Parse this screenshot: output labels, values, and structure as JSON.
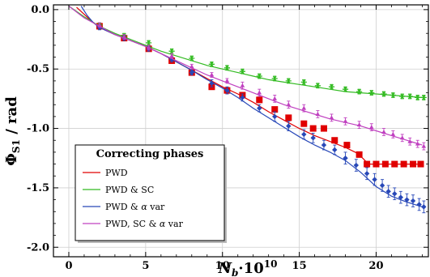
{
  "chart_data": {
    "type": "line",
    "xlabel_base": "N",
    "xlabel_sub": "b",
    "xlabel_rest": "·10",
    "xlabel_sup": "10",
    "ylabel_base": "Φ",
    "ylabel_sub": "S1",
    "ylabel_rest": " / rad",
    "xlim": [
      -1.0,
      23.4
    ],
    "ylim": [
      -2.08,
      0.04
    ],
    "x_ticks": [
      "0",
      "5",
      "10",
      "15",
      "20"
    ],
    "x_tick_values": [
      0,
      5,
      10,
      15,
      20
    ],
    "y_ticks": [
      "0.0",
      "-0.5",
      "-1.0",
      "-1.5",
      "-2.0"
    ],
    "y_tick_values": [
      0.0,
      -0.5,
      -1.0,
      -1.5,
      -2.0
    ],
    "legend": {
      "title": "Correcting phases",
      "placement": "lower-left",
      "entries": [
        {
          "label": "PWD",
          "color": "#e00000"
        },
        {
          "label": "PWD & SC",
          "color": "#33bb22"
        },
        {
          "label_prefix": "PWD & ",
          "label_symbol": "α",
          "label_suffix": " var",
          "color": "#2848b8"
        },
        {
          "label_prefix": "PWD, SC & ",
          "label_symbol": "α",
          "label_suffix": " var",
          "color": "#c040c0"
        }
      ]
    },
    "series": [
      {
        "name": "PWD",
        "color": "#e00000",
        "marker": "square",
        "curve_x": [
          0.5,
          1.0,
          1.5,
          2.0,
          3.0,
          4.0,
          5.0,
          6.0,
          7.0,
          8.0,
          9.0,
          10.0,
          11.0,
          12.0,
          13.0,
          14.0,
          15.0,
          16.0,
          17.0,
          18.0,
          18.8,
          19.2,
          19.5,
          19.8,
          20.5,
          21.5,
          23.0
        ],
        "curve_y": [
          0.02,
          -0.04,
          -0.1,
          -0.15,
          -0.21,
          -0.26,
          -0.31,
          -0.37,
          -0.44,
          -0.51,
          -0.58,
          -0.65,
          -0.71,
          -0.78,
          -0.86,
          -0.93,
          -1.0,
          -1.06,
          -1.11,
          -1.16,
          -1.21,
          -1.26,
          -1.3,
          -1.3,
          -1.3,
          -1.3,
          -1.3
        ],
        "points_x": [
          2.0,
          3.6,
          5.2,
          6.7,
          8.0,
          9.3,
          10.3,
          11.3,
          12.4,
          13.4,
          14.3,
          15.3,
          15.9,
          16.6,
          17.3,
          18.1,
          18.9,
          19.4,
          20.0,
          20.6,
          21.2,
          21.8,
          22.4,
          22.9
        ],
        "points_y": [
          -0.14,
          -0.24,
          -0.33,
          -0.43,
          -0.53,
          -0.65,
          -0.68,
          -0.72,
          -0.76,
          -0.84,
          -0.91,
          -0.96,
          -1.0,
          -1.0,
          -1.1,
          -1.14,
          -1.22,
          -1.3,
          -1.3,
          -1.3,
          -1.3,
          -1.3,
          -1.3,
          -1.3
        ],
        "errors": [
          0.0,
          0.0,
          0.0,
          0.0,
          0.0,
          0.0,
          0.0,
          0.0,
          0.0,
          0.0,
          0.0,
          0.0,
          0.0,
          0.0,
          0.0,
          0.0,
          0.0,
          0.0,
          0.0,
          0.0,
          0.0,
          0.0,
          0.0,
          0.0
        ]
      },
      {
        "name": "PWD & SC",
        "color": "#33bb22",
        "marker": "star",
        "curve_x": [
          0.0,
          1.0,
          2.0,
          3.0,
          4.0,
          5.0,
          6.0,
          7.0,
          8.0,
          9.0,
          10.0,
          11.0,
          12.0,
          13.0,
          14.0,
          15.0,
          16.0,
          17.0,
          18.0,
          19.0,
          20.0,
          21.0,
          22.0,
          23.0
        ],
        "curve_y": [
          0.03,
          -0.06,
          -0.14,
          -0.2,
          -0.25,
          -0.3,
          -0.35,
          -0.39,
          -0.43,
          -0.47,
          -0.5,
          -0.53,
          -0.56,
          -0.59,
          -0.61,
          -0.63,
          -0.65,
          -0.67,
          -0.69,
          -0.7,
          -0.71,
          -0.72,
          -0.73,
          -0.74
        ],
        "points_x": [
          2.0,
          3.6,
          5.2,
          6.7,
          8.0,
          9.3,
          10.3,
          11.3,
          12.4,
          13.4,
          14.3,
          15.3,
          16.2,
          17.1,
          18.0,
          18.9,
          19.7,
          20.5,
          21.1,
          21.7,
          22.2,
          22.7,
          23.1
        ],
        "points_y": [
          -0.13,
          -0.22,
          -0.28,
          -0.35,
          -0.41,
          -0.46,
          -0.49,
          -0.52,
          -0.56,
          -0.58,
          -0.6,
          -0.61,
          -0.64,
          -0.65,
          -0.67,
          -0.69,
          -0.7,
          -0.71,
          -0.72,
          -0.73,
          -0.73,
          -0.74,
          -0.74
        ],
        "errors": [
          0.02,
          0.02,
          0.02,
          0.02,
          0.02,
          0.02,
          0.02,
          0.02,
          0.02,
          0.02,
          0.02,
          0.02,
          0.02,
          0.02,
          0.02,
          0.02,
          0.02,
          0.02,
          0.02,
          0.02,
          0.02,
          0.02,
          0.02
        ]
      },
      {
        "name": "PWD & α var",
        "color": "#2848b8",
        "marker": "diamond",
        "curve_x": [
          0.8,
          1.2,
          1.6,
          2.0,
          3.0,
          4.0,
          5.0,
          6.0,
          7.0,
          8.0,
          9.0,
          10.0,
          11.0,
          12.0,
          13.0,
          14.0,
          15.0,
          16.0,
          17.0,
          18.0,
          19.0,
          19.5,
          20.0,
          21.0,
          22.0,
          23.0
        ],
        "curve_y": [
          0.03,
          -0.05,
          -0.11,
          -0.15,
          -0.21,
          -0.26,
          -0.31,
          -0.37,
          -0.44,
          -0.51,
          -0.59,
          -0.66,
          -0.74,
          -0.83,
          -0.91,
          -0.99,
          -1.07,
          -1.14,
          -1.2,
          -1.27,
          -1.37,
          -1.43,
          -1.49,
          -1.57,
          -1.62,
          -1.66
        ],
        "points_x": [
          2.0,
          3.6,
          5.2,
          6.7,
          8.0,
          9.3,
          10.3,
          11.3,
          12.4,
          13.4,
          14.3,
          15.3,
          15.9,
          16.6,
          17.3,
          18.0,
          18.7,
          19.4,
          19.9,
          20.4,
          20.8,
          21.2,
          21.6,
          22.0,
          22.4,
          22.8,
          23.1
        ],
        "points_y": [
          -0.15,
          -0.24,
          -0.33,
          -0.42,
          -0.53,
          -0.62,
          -0.68,
          -0.74,
          -0.83,
          -0.9,
          -0.98,
          -1.05,
          -1.08,
          -1.14,
          -1.18,
          -1.25,
          -1.31,
          -1.38,
          -1.43,
          -1.48,
          -1.53,
          -1.55,
          -1.58,
          -1.6,
          -1.61,
          -1.64,
          -1.66
        ],
        "errors": [
          0.02,
          0.02,
          0.02,
          0.02,
          0.02,
          0.03,
          0.03,
          0.03,
          0.03,
          0.04,
          0.04,
          0.04,
          0.04,
          0.04,
          0.04,
          0.05,
          0.05,
          0.05,
          0.05,
          0.05,
          0.05,
          0.05,
          0.05,
          0.05,
          0.05,
          0.05,
          0.05
        ]
      },
      {
        "name": "PWD, SC & α var",
        "color": "#c040c0",
        "marker": "triangle",
        "curve_x": [
          0.0,
          1.0,
          2.0,
          3.0,
          4.0,
          5.0,
          6.0,
          7.0,
          8.0,
          9.0,
          10.0,
          11.0,
          12.0,
          13.0,
          14.0,
          15.0,
          16.0,
          17.0,
          18.0,
          19.0,
          20.0,
          21.0,
          22.0,
          23.0
        ],
        "curve_y": [
          0.03,
          -0.07,
          -0.14,
          -0.21,
          -0.26,
          -0.31,
          -0.37,
          -0.43,
          -0.49,
          -0.55,
          -0.6,
          -0.65,
          -0.7,
          -0.75,
          -0.8,
          -0.84,
          -0.88,
          -0.92,
          -0.95,
          -0.98,
          -1.02,
          -1.06,
          -1.1,
          -1.14
        ],
        "points_x": [
          2.0,
          3.6,
          5.2,
          6.7,
          8.0,
          9.3,
          10.3,
          11.3,
          12.4,
          13.4,
          14.3,
          15.3,
          16.2,
          17.1,
          18.0,
          18.9,
          19.7,
          20.5,
          21.1,
          21.7,
          22.2,
          22.7,
          23.1
        ],
        "points_y": [
          -0.13,
          -0.23,
          -0.32,
          -0.39,
          -0.48,
          -0.55,
          -0.6,
          -0.64,
          -0.7,
          -0.75,
          -0.8,
          -0.83,
          -0.88,
          -0.91,
          -0.94,
          -0.97,
          -0.99,
          -1.03,
          -1.05,
          -1.08,
          -1.11,
          -1.13,
          -1.15
        ],
        "errors": [
          0.02,
          0.02,
          0.02,
          0.02,
          0.02,
          0.02,
          0.02,
          0.03,
          0.03,
          0.03,
          0.03,
          0.03,
          0.03,
          0.03,
          0.03,
          0.03,
          0.03,
          0.03,
          0.03,
          0.03,
          0.03,
          0.03,
          0.03
        ]
      }
    ]
  }
}
